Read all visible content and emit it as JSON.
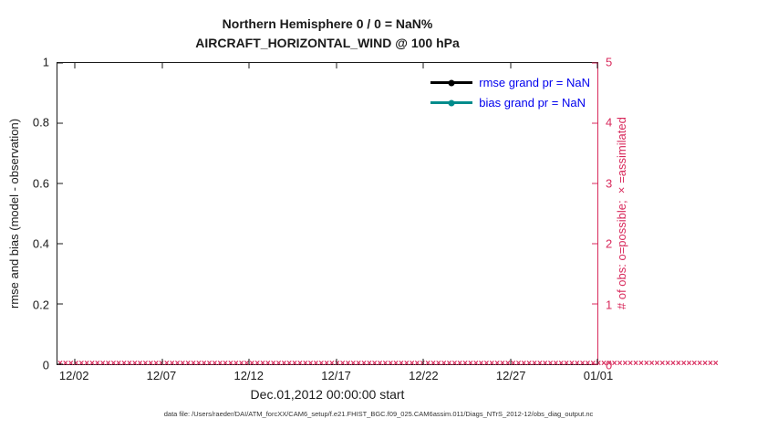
{
  "title": {
    "line1": "Northern Hemisphere 0 / 0 = NaN%",
    "line2": "AIRCRAFT_HORIZONTAL_WIND @ 100 hPa"
  },
  "axes": {
    "left_label": "rmse and bias (model - observation)",
    "right_label": "# of obs: o=possible; ×=assimilated",
    "x_label": "Dec.01,2012 00:00:00 start",
    "left_ticks": [
      "0",
      "0.2",
      "0.4",
      "0.6",
      "0.8",
      "1"
    ],
    "right_ticks": [
      "0",
      "1",
      "2",
      "3",
      "4",
      "5"
    ],
    "x_ticks": [
      "12/02",
      "12/07",
      "12/12",
      "12/17",
      "12/22",
      "12/27",
      "01/01"
    ]
  },
  "legend": [
    {
      "label": "rmse grand pr = NaN",
      "color": "#000000"
    },
    {
      "label": "bias grand pr = NaN",
      "color": "#008c8c"
    }
  ],
  "footer": "data file: /Users/raeder/DAI/ATM_forcXX/CAM6_setup/f.e21.FHIST_BGC.f09_025.CAM6assim.011/Diags_NTrS_2012-12/obs_diag_output.nc",
  "colors": {
    "obs_axis": "#d82a5c",
    "legend_text": "#0000ee",
    "rmse_series": "#000000",
    "bias_series": "#008c8c"
  },
  "chart_data": {
    "type": "line",
    "title": "Northern Hemisphere 0 / 0 = NaN%",
    "subtitle": "AIRCRAFT_HORIZONTAL_WIND @ 100 hPa",
    "x": {
      "label": "Dec.01,2012 00:00:00 start",
      "tick_labels": [
        "12/02",
        "12/07",
        "12/12",
        "12/17",
        "12/22",
        "12/27",
        "01/01"
      ],
      "range": [
        "12/01",
        "01/01"
      ]
    },
    "x_tick_positions": [
      0.0323,
      0.1935,
      0.3548,
      0.5161,
      0.6774,
      0.8387,
      1.0
    ],
    "y_left": {
      "label": "rmse and bias (model - observation)",
      "range": [
        0,
        1
      ],
      "ticks": [
        0,
        0.2,
        0.4,
        0.6,
        0.8,
        1
      ]
    },
    "y_right": {
      "label": "# of obs: o=possible; ×=assimilated",
      "range": [
        0,
        5
      ],
      "ticks": [
        0,
        1,
        2,
        3,
        4,
        5
      ]
    },
    "series": [
      {
        "name": "rmse",
        "grand_pr": "NaN",
        "values": [],
        "color": "#000000",
        "note": "all NaN, no curve plotted"
      },
      {
        "name": "bias",
        "grand_pr": "NaN",
        "values": [],
        "color": "#008c8c",
        "note": "all NaN, no curve plotted"
      },
      {
        "name": "possible obs (o)",
        "constant_value": 0,
        "color": "#d82a5c"
      },
      {
        "name": "assimilated obs (x)",
        "constant_value": 0,
        "color": "#d82a5c"
      }
    ],
    "obs_marker_count": 124,
    "grid": false,
    "legend_position": "top-right-inside"
  }
}
